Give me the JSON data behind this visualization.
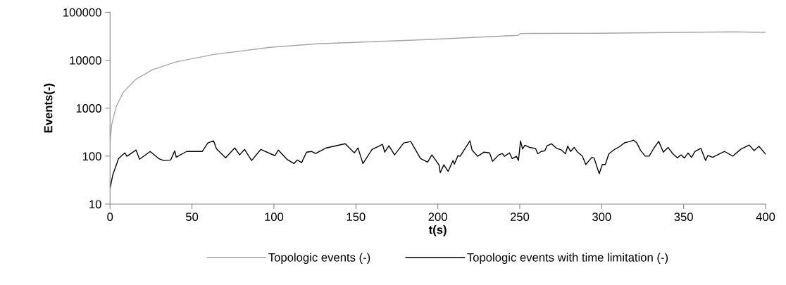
{
  "chart_data": {
    "type": "line",
    "xlabel": "t(s)",
    "ylabel": "Events(-)",
    "log": "y",
    "grid": false,
    "legend": "bottom",
    "marker": "none",
    "line_style": "solid",
    "xlim": [
      0,
      400
    ],
    "xticks": [
      0,
      50,
      100,
      150,
      200,
      250,
      300,
      350,
      400
    ],
    "ylim": [
      10,
      100000
    ],
    "yticks": [
      10,
      100,
      1000,
      10000,
      100000
    ],
    "series": [
      {
        "name": "Topologic events (-)",
        "color": "#a6a6a6",
        "x": [
          0,
          1,
          2.4,
          3.9,
          8.2,
          16,
          26.1,
          40.4,
          63.3,
          97.7,
          126.3,
          190.8,
          249,
          250.5,
          300,
          350,
          380,
          400
        ],
        "values": [
          200,
          450,
          706,
          1107,
          2180,
          4050,
          6370,
          9250,
          13200,
          18600,
          22000,
          26700,
          33000,
          36000,
          36500,
          38000,
          39000,
          38000
        ]
      },
      {
        "name": "Topologic events with time limitation (-)",
        "color": "#000000",
        "x": [
          0,
          1.7,
          3,
          5.2,
          9,
          10.3,
          15.9,
          18,
          24.5,
          29.7,
          32.7,
          37,
          39.5,
          40.4,
          46.8,
          56.3,
          59.7,
          63.2,
          64.9,
          70.5,
          76.1,
          79.1,
          82.1,
          86.4,
          92,
          100.6,
          102.7,
          107.9,
          112.2,
          114.3,
          116.9,
          119.9,
          122.9,
          125.5,
          131.9,
          143.5,
          149.1,
          151.3,
          154.3,
          159.9,
          166.3,
          167.6,
          170.2,
          173.6,
          179.2,
          183.5,
          189.5,
          193.8,
          196.4,
          200.7,
          201.5,
          203.7,
          206.3,
          209.3,
          210.1,
          212.3,
          213.6,
          219.6,
          220.9,
          224.3,
          228.2,
          231.6,
          233.4,
          237.2,
          239.4,
          240.7,
          243.7,
          245.4,
          248,
          249.2,
          250.5,
          251.7,
          253.1,
          256,
          259.6,
          261,
          263.1,
          265.3,
          266.7,
          269.3,
          272.5,
          275.3,
          277.9,
          279.3,
          281,
          283.2,
          285.3,
          288.2,
          290.3,
          294,
          295.4,
          297.1,
          298.5,
          300.4,
          302.2,
          304.4,
          307.5,
          310.8,
          314,
          317.6,
          319.4,
          321.4,
          323.7,
          326.6,
          329,
          331.9,
          334.8,
          337.6,
          340.5,
          343.4,
          346.2,
          348.4,
          350.5,
          352.7,
          354.8,
          357,
          360.5,
          363.4,
          364.8,
          367.7,
          370.6,
          375,
          380,
          385,
          390,
          393,
          396,
          400
        ],
        "values": [
          21,
          41,
          54,
          89,
          117,
          99,
          134,
          86,
          125,
          89,
          81,
          83,
          129,
          95,
          125,
          125,
          188,
          208,
          143,
          92,
          148,
          106,
          138,
          81,
          138,
          102,
          134,
          86,
          70,
          83,
          73,
          121,
          125,
          113,
          148,
          181,
          117,
          148,
          70,
          138,
          176,
          121,
          164,
          106,
          188,
          201,
          89,
          75,
          106,
          66,
          45,
          66,
          48,
          81,
          68,
          102,
          99,
          208,
          134,
          99,
          121,
          117,
          78,
          106,
          113,
          99,
          117,
          89,
          99,
          81,
          208,
          140,
          169,
          152,
          145,
          112,
          125,
          129,
          165,
          181,
          145,
          135,
          112,
          162,
          125,
          152,
          121,
          100,
          67,
          94,
          91,
          60,
          43,
          67,
          67,
          112,
          135,
          157,
          190,
          203,
          215,
          190,
          132,
          100,
          100,
          148,
          203,
          121,
          152,
          112,
          92,
          106,
          91,
          116,
          94,
          125,
          145,
          81,
          103,
          94,
          106,
          125,
          100,
          140,
          170,
          130,
          160,
          110
        ]
      }
    ]
  }
}
